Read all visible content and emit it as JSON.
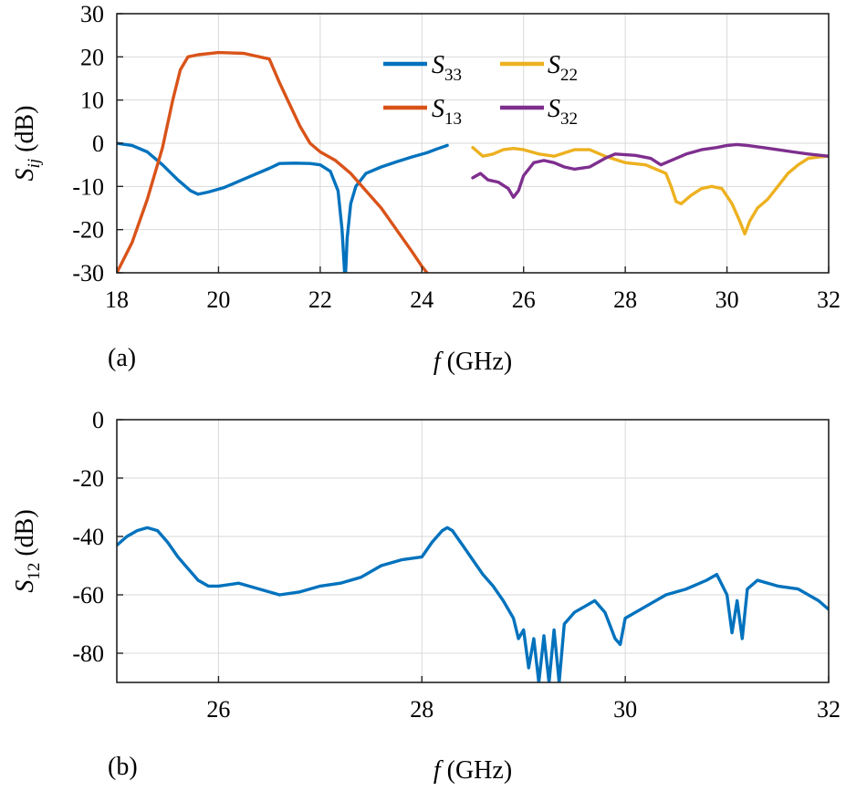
{
  "colors": {
    "blue": "#0072BD",
    "orange": "#D95319",
    "yellow": "#EDB120",
    "purple": "#7E2F8E"
  },
  "panel_a_label": "(a)",
  "panel_b_label": "(b)",
  "chart_data": [
    {
      "type": "line",
      "panel": "(a)",
      "xlabel": "f (GHz)",
      "ylabel": "S_ij (dB)",
      "xlim": [
        18,
        32
      ],
      "ylim": [
        -30,
        30
      ],
      "xticks": [
        18,
        20,
        22,
        24,
        26,
        28,
        30,
        32
      ],
      "yticks": [
        30,
        20,
        10,
        0,
        -10,
        -20,
        -30
      ],
      "grid": true,
      "legend_position": "top-center",
      "series": [
        {
          "name": "S33",
          "color": "#0072BD",
          "x": [
            18.0,
            18.3,
            18.6,
            18.9,
            19.2,
            19.45,
            19.6,
            19.8,
            20.1,
            20.4,
            20.7,
            21.0,
            21.2,
            21.5,
            21.8,
            22.0,
            22.2,
            22.35,
            22.43,
            22.48,
            22.5,
            22.53,
            22.6,
            22.7,
            22.9,
            23.2,
            23.5,
            23.8,
            24.1,
            24.3,
            24.5
          ],
          "y": [
            0.0,
            -0.5,
            -2.0,
            -5.0,
            -8.5,
            -11.0,
            -11.8,
            -11.3,
            -10.3,
            -8.8,
            -7.3,
            -5.8,
            -4.7,
            -4.6,
            -4.7,
            -5.0,
            -6.5,
            -11.0,
            -20.0,
            -30.0,
            -30.0,
            -22.0,
            -14.0,
            -10.0,
            -7.0,
            -5.5,
            -4.3,
            -3.2,
            -2.2,
            -1.3,
            -0.5
          ]
        },
        {
          "name": "S13",
          "color": "#D95319",
          "x": [
            18.0,
            18.3,
            18.6,
            18.9,
            19.1,
            19.25,
            19.4,
            19.6,
            20.0,
            20.5,
            21.0,
            21.2,
            21.4,
            21.6,
            21.8,
            22.0,
            22.3,
            22.6,
            22.9,
            23.2,
            23.5,
            23.8,
            24.0,
            24.1
          ],
          "y": [
            -30.0,
            -23.0,
            -13.0,
            -1.0,
            10.0,
            17.0,
            20.0,
            20.5,
            21.0,
            20.8,
            19.5,
            14.0,
            9.0,
            4.0,
            0.0,
            -2.0,
            -4.0,
            -7.0,
            -11.0,
            -15.0,
            -20.0,
            -25.0,
            -28.5,
            -30.0
          ]
        },
        {
          "name": "S22",
          "color": "#EDB120",
          "x": [
            25.0,
            25.2,
            25.4,
            25.6,
            25.8,
            26.0,
            26.3,
            26.6,
            27.0,
            27.3,
            27.6,
            28.0,
            28.4,
            28.8,
            28.9,
            29.0,
            29.1,
            29.3,
            29.5,
            29.7,
            29.9,
            30.1,
            30.25,
            30.35,
            30.45,
            30.6,
            30.8,
            31.0,
            31.2,
            31.4,
            31.6,
            31.8,
            32.0
          ],
          "y": [
            -1.0,
            -3.0,
            -2.5,
            -1.5,
            -1.2,
            -1.5,
            -2.5,
            -3.0,
            -1.5,
            -1.5,
            -3.0,
            -4.5,
            -5.0,
            -7.0,
            -10.0,
            -13.5,
            -14.0,
            -12.0,
            -10.5,
            -10.0,
            -10.5,
            -14.0,
            -18.0,
            -21.0,
            -18.0,
            -15.0,
            -13.0,
            -10.0,
            -7.0,
            -5.0,
            -3.5,
            -3.2,
            -3.0
          ]
        },
        {
          "name": "S32",
          "color": "#7E2F8E",
          "x": [
            25.0,
            25.15,
            25.3,
            25.5,
            25.7,
            25.8,
            25.9,
            26.0,
            26.2,
            26.4,
            26.6,
            26.8,
            27.0,
            27.3,
            27.6,
            27.8,
            28.2,
            28.5,
            28.7,
            28.9,
            29.2,
            29.5,
            29.8,
            30.0,
            30.2,
            30.4,
            30.7,
            31.0,
            31.3,
            31.6,
            32.0
          ],
          "y": [
            -8.0,
            -7.0,
            -8.5,
            -9.0,
            -10.5,
            -12.5,
            -11.0,
            -7.5,
            -4.5,
            -4.0,
            -4.5,
            -5.5,
            -6.0,
            -5.5,
            -3.5,
            -2.5,
            -2.8,
            -3.5,
            -5.0,
            -4.0,
            -2.5,
            -1.5,
            -1.0,
            -0.5,
            -0.3,
            -0.5,
            -1.0,
            -1.5,
            -2.0,
            -2.5,
            -3.0
          ]
        }
      ]
    },
    {
      "type": "line",
      "panel": "(b)",
      "xlabel": "f (GHz)",
      "ylabel": "S_12 (dB)",
      "xlim": [
        25,
        32
      ],
      "ylim": [
        -90,
        0
      ],
      "xticks": [
        26,
        28,
        30,
        32
      ],
      "yticks": [
        0,
        -20,
        -40,
        -60,
        -80
      ],
      "grid": true,
      "series": [
        {
          "name": "S12",
          "color": "#0072BD",
          "x": [
            25.0,
            25.1,
            25.2,
            25.3,
            25.4,
            25.5,
            25.6,
            25.7,
            25.8,
            25.9,
            26.0,
            26.2,
            26.4,
            26.6,
            26.8,
            27.0,
            27.2,
            27.4,
            27.6,
            27.8,
            28.0,
            28.1,
            28.2,
            28.25,
            28.3,
            28.4,
            28.5,
            28.6,
            28.7,
            28.8,
            28.9,
            28.95,
            29.0,
            29.05,
            29.1,
            29.15,
            29.2,
            29.25,
            29.3,
            29.35,
            29.4,
            29.5,
            29.6,
            29.7,
            29.8,
            29.9,
            29.95,
            30.0,
            30.2,
            30.4,
            30.6,
            30.8,
            30.9,
            31.0,
            31.05,
            31.1,
            31.15,
            31.2,
            31.3,
            31.5,
            31.7,
            31.9,
            32.0
          ],
          "y": [
            -43,
            -40,
            -38,
            -37,
            -38,
            -42,
            -47,
            -51,
            -55,
            -57,
            -57,
            -56,
            -58,
            -60,
            -59,
            -57,
            -56,
            -54,
            -50,
            -48,
            -47,
            -42,
            -38,
            -37,
            -38,
            -43,
            -48,
            -53,
            -57,
            -62,
            -68,
            -75,
            -72,
            -85,
            -75,
            -90,
            -74,
            -90,
            -72,
            -90,
            -70,
            -66,
            -64,
            -62,
            -66,
            -75,
            -77,
            -68,
            -64,
            -60,
            -58,
            -55,
            -53,
            -60,
            -73,
            -62,
            -75,
            -58,
            -55,
            -57,
            -58,
            -62,
            -65
          ]
        }
      ]
    }
  ]
}
